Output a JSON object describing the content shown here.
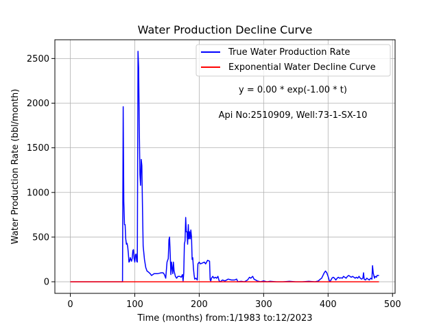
{
  "chart_data": {
    "type": "line",
    "title": "Water Production Decline Curve",
    "xlabel": "Time (months) from:1/1983 to:12/2023",
    "ylabel": "Water Production Rate (bbl/month)",
    "xlim": [
      -24,
      504
    ],
    "ylim": [
      -130,
      2710
    ],
    "xticks": [
      0,
      100,
      200,
      300,
      400,
      500
    ],
    "yticks": [
      0,
      500,
      1000,
      1500,
      2000,
      2500
    ],
    "grid": true,
    "legend_position": "top-right",
    "annotations": [
      "y = 0.00 * exp(-1.00 * t)",
      "Api No:2510909, Well:73-1-SX-10"
    ],
    "series": [
      {
        "name": "True Water Production Rate",
        "color": "#0000ff",
        "points": [
          [
            0,
            0
          ],
          [
            20,
            0
          ],
          [
            40,
            0
          ],
          [
            60,
            0
          ],
          [
            81,
            0
          ],
          [
            82,
            1960
          ],
          [
            83,
            900
          ],
          [
            84,
            640
          ],
          [
            85,
            640
          ],
          [
            86,
            480
          ],
          [
            87,
            420
          ],
          [
            88,
            430
          ],
          [
            89,
            390
          ],
          [
            90,
            320
          ],
          [
            91,
            220
          ],
          [
            92,
            230
          ],
          [
            93,
            270
          ],
          [
            94,
            250
          ],
          [
            95,
            230
          ],
          [
            96,
            260
          ],
          [
            97,
            350
          ],
          [
            98,
            360
          ],
          [
            99,
            260
          ],
          [
            100,
            220
          ],
          [
            101,
            300
          ],
          [
            102,
            310
          ],
          [
            103,
            230
          ],
          [
            104,
            220
          ],
          [
            105,
            2580
          ],
          [
            106,
            2400
          ],
          [
            107,
            1700
          ],
          [
            108,
            1200
          ],
          [
            109,
            1080
          ],
          [
            110,
            1370
          ],
          [
            111,
            1300
          ],
          [
            112,
            800
          ],
          [
            113,
            400
          ],
          [
            115,
            250
          ],
          [
            117,
            160
          ],
          [
            119,
            120
          ],
          [
            121,
            110
          ],
          [
            124,
            90
          ],
          [
            126,
            70
          ],
          [
            128,
            80
          ],
          [
            130,
            90
          ],
          [
            132,
            90
          ],
          [
            135,
            90
          ],
          [
            138,
            95
          ],
          [
            141,
            100
          ],
          [
            144,
            100
          ],
          [
            146,
            80
          ],
          [
            148,
            40
          ],
          [
            150,
            220
          ],
          [
            152,
            260
          ],
          [
            153,
            470
          ],
          [
            154,
            500
          ],
          [
            155,
            300
          ],
          [
            156,
            80
          ],
          [
            157,
            220
          ],
          [
            158,
            150
          ],
          [
            159,
            90
          ],
          [
            160,
            220
          ],
          [
            161,
            120
          ],
          [
            163,
            60
          ],
          [
            165,
            40
          ],
          [
            167,
            60
          ],
          [
            170,
            60
          ],
          [
            172,
            50
          ],
          [
            174,
            80
          ],
          [
            175,
            10
          ],
          [
            176,
            100
          ],
          [
            177,
            420
          ],
          [
            178,
            460
          ],
          [
            179,
            720
          ],
          [
            180,
            560
          ],
          [
            181,
            560
          ],
          [
            182,
            420
          ],
          [
            183,
            640
          ],
          [
            184,
            480
          ],
          [
            185,
            560
          ],
          [
            186,
            480
          ],
          [
            187,
            580
          ],
          [
            188,
            500
          ],
          [
            189,
            250
          ],
          [
            190,
            270
          ],
          [
            191,
            150
          ],
          [
            192,
            80
          ],
          [
            193,
            30
          ],
          [
            195,
            40
          ],
          [
            197,
            20
          ],
          [
            198,
            200
          ],
          [
            200,
            220
          ],
          [
            202,
            200
          ],
          [
            205,
            210
          ],
          [
            208,
            220
          ],
          [
            210,
            200
          ],
          [
            213,
            240
          ],
          [
            216,
            230
          ],
          [
            217,
            20
          ],
          [
            218,
            10
          ],
          [
            219,
            40
          ],
          [
            221,
            60
          ],
          [
            223,
            40
          ],
          [
            225,
            50
          ],
          [
            227,
            40
          ],
          [
            229,
            60
          ],
          [
            231,
            10
          ],
          [
            233,
            0
          ],
          [
            236,
            20
          ],
          [
            240,
            10
          ],
          [
            245,
            30
          ],
          [
            250,
            20
          ],
          [
            255,
            20
          ],
          [
            258,
            30
          ],
          [
            260,
            0
          ],
          [
            265,
            5
          ],
          [
            270,
            0
          ],
          [
            275,
            20
          ],
          [
            278,
            50
          ],
          [
            280,
            40
          ],
          [
            283,
            60
          ],
          [
            285,
            30
          ],
          [
            290,
            10
          ],
          [
            295,
            0
          ],
          [
            300,
            10
          ],
          [
            305,
            0
          ],
          [
            310,
            5
          ],
          [
            320,
            0
          ],
          [
            330,
            0
          ],
          [
            340,
            5
          ],
          [
            350,
            0
          ],
          [
            360,
            0
          ],
          [
            370,
            5
          ],
          [
            380,
            0
          ],
          [
            385,
            10
          ],
          [
            388,
            30
          ],
          [
            390,
            40
          ],
          [
            392,
            70
          ],
          [
            394,
            100
          ],
          [
            396,
            120
          ],
          [
            398,
            100
          ],
          [
            400,
            60
          ],
          [
            402,
            10
          ],
          [
            403,
            0
          ],
          [
            406,
            40
          ],
          [
            408,
            50
          ],
          [
            410,
            40
          ],
          [
            412,
            20
          ],
          [
            414,
            40
          ],
          [
            416,
            50
          ],
          [
            418,
            40
          ],
          [
            420,
            45
          ],
          [
            422,
            40
          ],
          [
            424,
            60
          ],
          [
            426,
            50
          ],
          [
            428,
            40
          ],
          [
            430,
            60
          ],
          [
            432,
            70
          ],
          [
            434,
            60
          ],
          [
            436,
            50
          ],
          [
            438,
            60
          ],
          [
            440,
            50
          ],
          [
            442,
            40
          ],
          [
            444,
            50
          ],
          [
            446,
            40
          ],
          [
            448,
            60
          ],
          [
            450,
            40
          ],
          [
            452,
            30
          ],
          [
            454,
            40
          ],
          [
            455,
            100
          ],
          [
            456,
            30
          ],
          [
            458,
            20
          ],
          [
            460,
            40
          ],
          [
            462,
            30
          ],
          [
            464,
            20
          ],
          [
            466,
            40
          ],
          [
            468,
            30
          ],
          [
            469,
            180
          ],
          [
            470,
            100
          ],
          [
            472,
            40
          ],
          [
            473,
            60
          ],
          [
            475,
            50
          ],
          [
            476,
            70
          ],
          [
            478,
            70
          ],
          [
            479,
            70
          ]
        ]
      },
      {
        "name": "Exponential Water Decline Curve",
        "color": "#ff0000",
        "points": [
          [
            0,
            0
          ],
          [
            479,
            0
          ]
        ]
      }
    ]
  }
}
